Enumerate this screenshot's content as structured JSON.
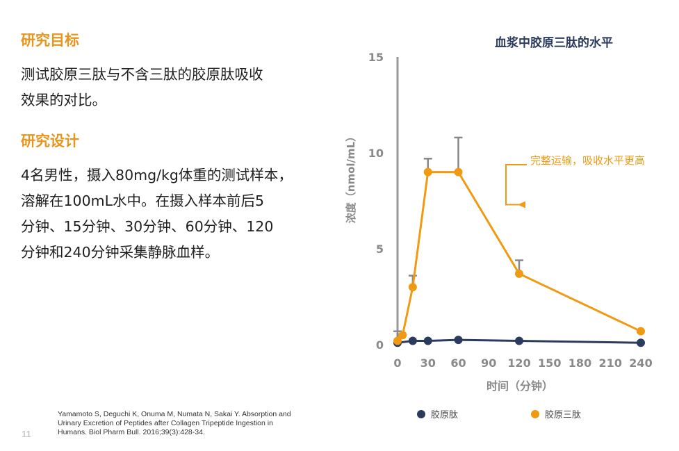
{
  "left": {
    "heading1": "研究目标",
    "para1_line1": "测试胶原三肽与不含三肽的胶原肽吸收",
    "para1_line2": "效果的对比。",
    "heading2": "研究设计",
    "para2_line1": "4名男性，摄入80mg/kg体重的测试样本，",
    "para2_line2": "溶解在100mL水中。在摄入样本前后5",
    "para2_line3": "分钟、15分钟、30分钟、60分钟、120",
    "para2_line4": "分钟和240分钟采集静脉血样。"
  },
  "citation": {
    "line1": "Yamamoto S, Deguchi K, Onuma M, Numata N, Sakai Y. Absorption and",
    "line2": "Urinary Excretion of Peptides after Collagen Tripeptide Ingestion in",
    "line3": "Humans. Biol Pharm Bull. 2016;39(3):428-34."
  },
  "page_number": "11",
  "colors": {
    "accent": "#E8951E",
    "tripeptide": "#F09A14",
    "peptide": "#2B3B5E",
    "axis": "#999999",
    "error_bar": "#888888"
  },
  "chart_data": {
    "type": "line",
    "title": "血浆中胶原三肽的水平",
    "xlabel": "时间（分钟）",
    "ylabel": "浓度（nmol/mL）",
    "xticks": [
      0,
      30,
      60,
      90,
      120,
      150,
      180,
      210,
      240
    ],
    "yticks": [
      0,
      5,
      10,
      15
    ],
    "xlim": [
      0,
      240
    ],
    "ylim": [
      0,
      15
    ],
    "series": [
      {
        "name": "胶原肽",
        "color": "#2B3B5E",
        "x": [
          0,
          15,
          30,
          60,
          120,
          240
        ],
        "y": [
          0.1,
          0.2,
          0.2,
          0.25,
          0.2,
          0.1
        ],
        "error_upper": [
          0,
          0,
          0,
          0,
          0,
          0
        ]
      },
      {
        "name": "胶原三肽",
        "color": "#F09A14",
        "x": [
          0,
          5,
          15,
          30,
          60,
          120,
          240
        ],
        "y": [
          0.2,
          0.5,
          3.0,
          9.0,
          9.0,
          3.7,
          0.7
        ],
        "error_upper": [
          0.5,
          0,
          0.6,
          0.7,
          1.8,
          0.7,
          0
        ]
      }
    ],
    "annotation": {
      "text": "完整运输，吸收水平更高",
      "target_x": 120,
      "target_y": 7.3
    }
  }
}
